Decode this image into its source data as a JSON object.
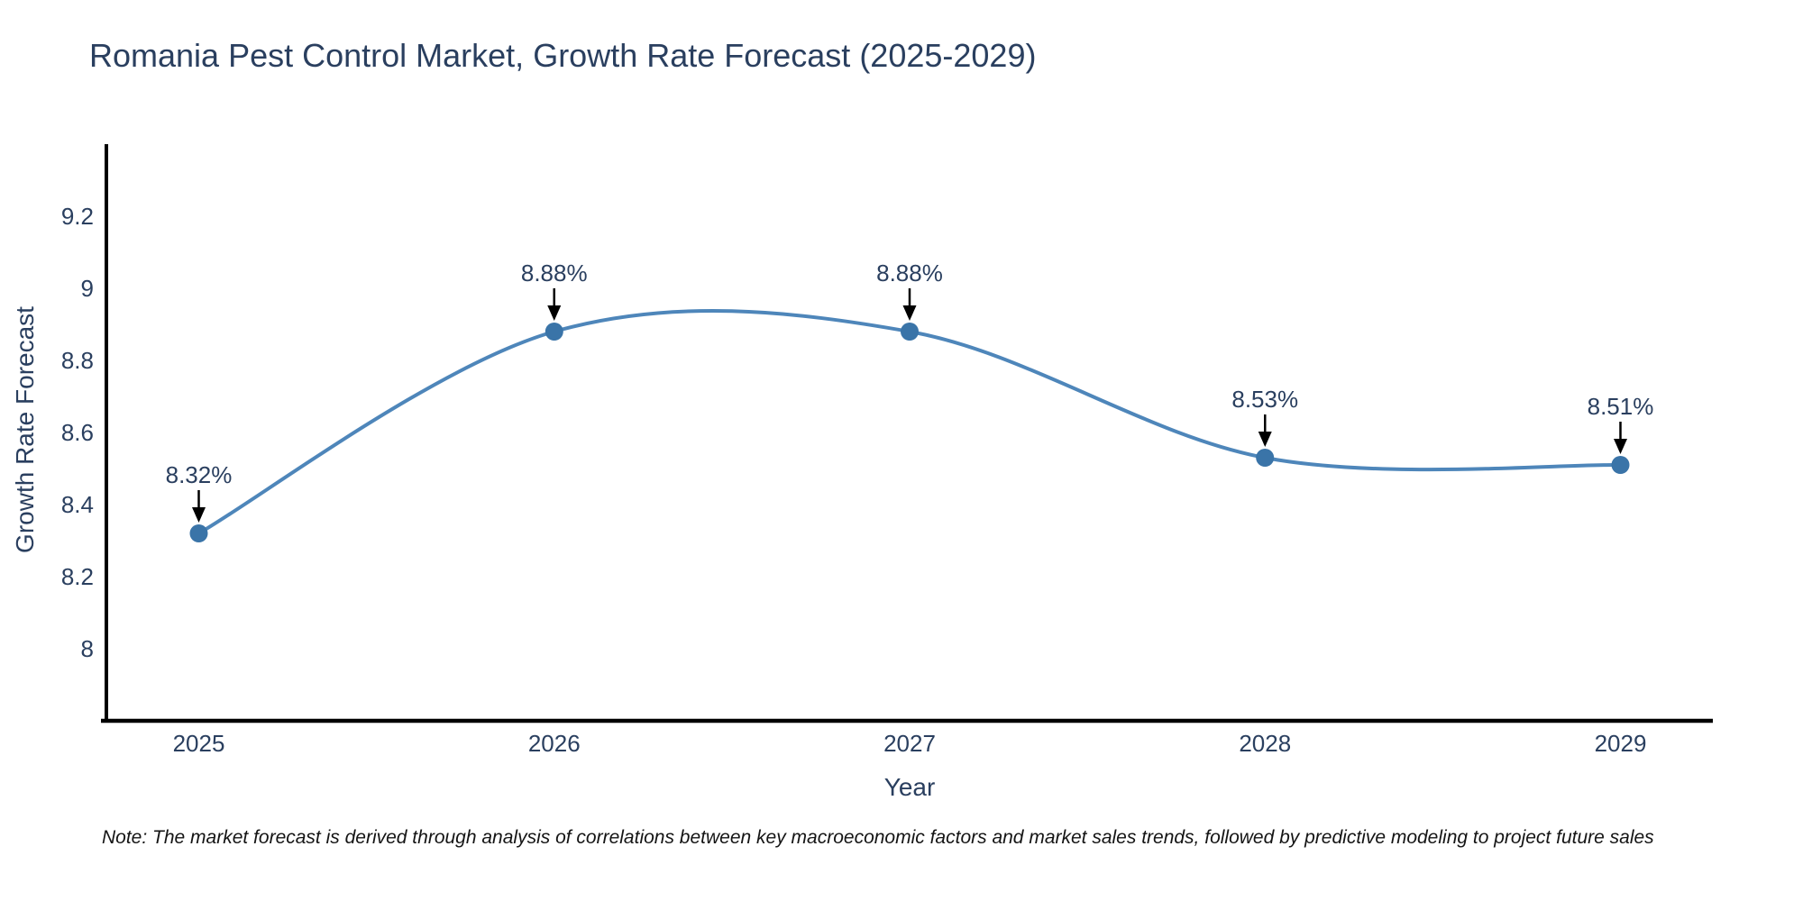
{
  "note": "Note: The market forecast is derived through analysis of correlations between key macroeconomic factors and market sales trends, followed by predictive modeling to project future sales",
  "chart_data": {
    "type": "line",
    "title": "Romania Pest Control Market, Growth Rate Forecast (2025-2029)",
    "x": [
      2025,
      2026,
      2027,
      2028,
      2029
    ],
    "series": [
      {
        "name": "Growth Rate Forecast",
        "values": [
          8.32,
          8.88,
          8.88,
          8.53,
          8.51
        ]
      }
    ],
    "data_labels": [
      "8.32%",
      "8.88%",
      "8.88%",
      "8.53%",
      "8.51%"
    ],
    "xlabel": "Year",
    "ylabel": "Growth Rate Forecast",
    "xticks": [
      "2025",
      "2026",
      "2027",
      "2028",
      "2029"
    ],
    "yticks": [
      8,
      8.2,
      8.4,
      8.6,
      8.8,
      9,
      9.2
    ],
    "ytick_labels": [
      "8",
      "8.2",
      "8.4",
      "8.6",
      "8.8",
      "9",
      "9.2"
    ],
    "xlim": [
      2024.74,
      2029.26
    ],
    "ylim": [
      7.8,
      9.4
    ],
    "grid": false,
    "legend": "none",
    "line_shape": "spline",
    "annotation_arrows": true,
    "line_color": "#4e86ba",
    "marker_color": "#3a74a8",
    "arrow_color": "#000000",
    "axis_color": "#000000",
    "text_color": "#2a3f5f"
  }
}
